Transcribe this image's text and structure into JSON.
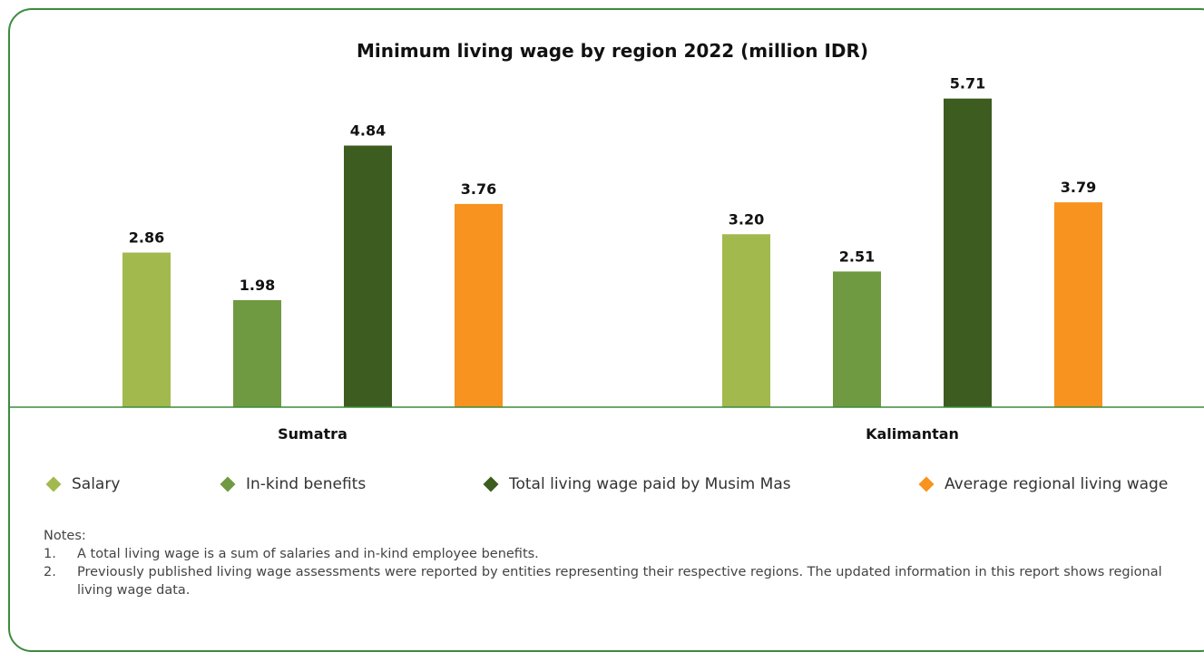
{
  "chart_data": {
    "type": "bar",
    "title": "Minimum living wage by region 2022 (million IDR)",
    "categories": [
      "Sumatra",
      "Kalimantan"
    ],
    "series": [
      {
        "name": "Salary",
        "color": "#a2b94e",
        "values": [
          2.86,
          3.2
        ],
        "labels": [
          "2.86",
          "3.20"
        ]
      },
      {
        "name": "In-kind benefits",
        "color": "#6f9a41",
        "values": [
          1.98,
          2.51
        ],
        "labels": [
          "1.98",
          "2.51"
        ]
      },
      {
        "name": "Total living wage paid by Musim Mas",
        "color": "#3c5c20",
        "values": [
          4.84,
          5.71
        ],
        "labels": [
          "4.84",
          "5.71"
        ]
      },
      {
        "name": "Average regional living wage",
        "color": "#f7931e",
        "values": [
          3.76,
          3.79
        ],
        "labels": [
          "3.76",
          "3.79"
        ]
      }
    ],
    "ylim": [
      0,
      6
    ],
    "grid": false,
    "legend_position": "bottom",
    "axis_color": "#3d8b3d"
  },
  "notes": {
    "heading": "Notes:",
    "items": [
      {
        "num": "1.",
        "text": "A total living wage is a sum of salaries and in-kind employee benefits."
      },
      {
        "num": "2.",
        "text": "Previously published living wage assessments were reported by entities representing their respective regions. The updated information in this report shows regional living wage data."
      }
    ]
  }
}
